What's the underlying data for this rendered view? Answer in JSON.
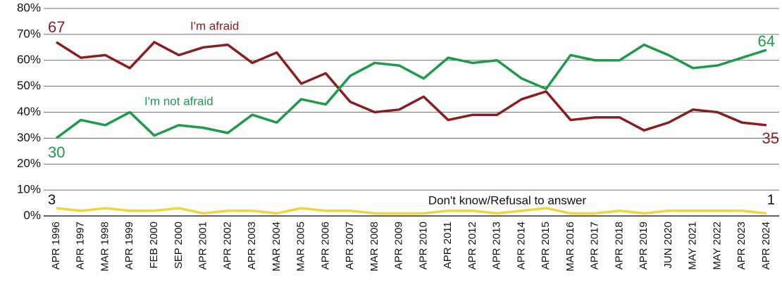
{
  "chart_data": {
    "type": "line",
    "categories": [
      "APR 1996",
      "APR 1997",
      "MAR 1998",
      "APR 1999",
      "FEB 2000",
      "SEP 2000",
      "APR 2001",
      "APR 2002",
      "APR 2003",
      "MAR 2004",
      "MAR 2005",
      "APR 2006",
      "APR 2007",
      "MAR 2008",
      "APR 2009",
      "APR 2010",
      "APR 2011",
      "APR 2012",
      "APR 2013",
      "APR 2014",
      "APR 2015",
      "MAR 2016",
      "APR 2017",
      "APR 2018",
      "APR 2019",
      "JUN 2020",
      "MAY 2021",
      "MAY 2022",
      "APR 2023",
      "APR 2024"
    ],
    "series": [
      {
        "name": "I'm afraid",
        "color": "#8b1c1f",
        "values": [
          67,
          61,
          62,
          57,
          67,
          62,
          65,
          66,
          59,
          63,
          51,
          55,
          44,
          40,
          41,
          46,
          37,
          39,
          39,
          45,
          48,
          37,
          38,
          38,
          33,
          36,
          41,
          40,
          36,
          35
        ]
      },
      {
        "name": "I'm not afraid",
        "color": "#1e9a4c",
        "values": [
          30,
          37,
          35,
          40,
          31,
          35,
          34,
          32,
          39,
          36,
          45,
          43,
          54,
          59,
          58,
          53,
          61,
          59,
          60,
          53,
          49,
          62,
          60,
          60,
          66,
          62,
          57,
          58,
          61,
          64
        ]
      },
      {
        "name": "Don't know/Refusal to answer",
        "color": "#f2d43a",
        "values": [
          3,
          2,
          3,
          2,
          2,
          3,
          1,
          2,
          2,
          1,
          3,
          2,
          2,
          1,
          1,
          1,
          2,
          2,
          1,
          2,
          3,
          1,
          1,
          2,
          1,
          2,
          2,
          2,
          2,
          1
        ]
      }
    ],
    "ylim": [
      0,
      80
    ],
    "yticks": [
      {
        "value": 0,
        "label": "0%"
      },
      {
        "value": 10,
        "label": "10%"
      },
      {
        "value": 20,
        "label": "20%"
      },
      {
        "value": 30,
        "label": "30%"
      },
      {
        "value": 40,
        "label": "40%"
      },
      {
        "value": 50,
        "label": "50%"
      },
      {
        "value": 60,
        "label": "60%"
      },
      {
        "value": 70,
        "label": "70%"
      },
      {
        "value": 80,
        "label": "80%"
      }
    ],
    "grid": true
  }
}
